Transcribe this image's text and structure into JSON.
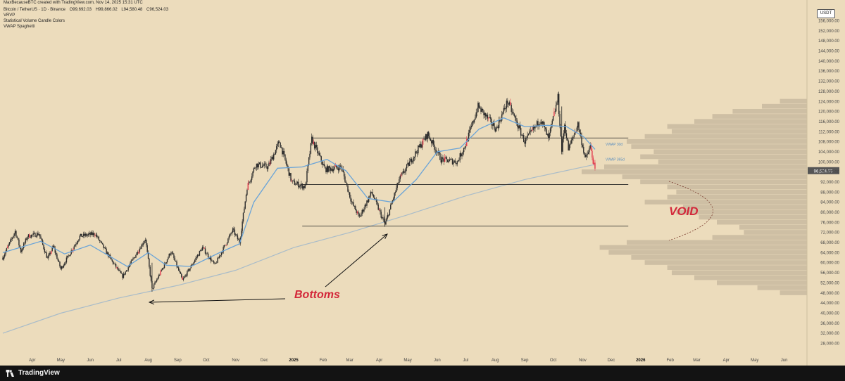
{
  "header": {
    "credit": "MaxBecauseBTC created with TradingView.com, Nov 14, 2025 15:31 UTC",
    "symbol": "Bitcoin / TetherUS · 1D · Binance",
    "ohlc": {
      "o": "O99,692.03",
      "h": "H99,866.02",
      "l": "L94,580.48",
      "c": "C96,524.03"
    },
    "indicators": [
      "VRVP",
      "Statistical Volume Candle Colors",
      "VWAP Spaghetti"
    ],
    "currency": "USDT"
  },
  "footer": {
    "brand": "TradingView"
  },
  "chart_data": {
    "type": "candlestick",
    "x_axis": {
      "start": "2024-03-01",
      "end": "2026-06-25",
      "ticks": [
        {
          "label": "Apr",
          "date": "2024-04-01"
        },
        {
          "label": "May",
          "date": "2024-05-01"
        },
        {
          "label": "Jun",
          "date": "2024-06-01"
        },
        {
          "label": "Jul",
          "date": "2024-07-01"
        },
        {
          "label": "Aug",
          "date": "2024-08-01"
        },
        {
          "label": "Sep",
          "date": "2024-09-01"
        },
        {
          "label": "Oct",
          "date": "2024-10-01"
        },
        {
          "label": "Nov",
          "date": "2024-11-01"
        },
        {
          "label": "Dec",
          "date": "2024-12-01"
        },
        {
          "label": "2025",
          "date": "2025-01-01",
          "bold": true
        },
        {
          "label": "Feb",
          "date": "2025-02-01"
        },
        {
          "label": "Mar",
          "date": "2025-03-01"
        },
        {
          "label": "Apr",
          "date": "2025-04-01"
        },
        {
          "label": "May",
          "date": "2025-05-01"
        },
        {
          "label": "Jun",
          "date": "2025-06-01"
        },
        {
          "label": "Jul",
          "date": "2025-07-01"
        },
        {
          "label": "Aug",
          "date": "2025-08-01"
        },
        {
          "label": "Sep",
          "date": "2025-09-01"
        },
        {
          "label": "Oct",
          "date": "2025-10-01"
        },
        {
          "label": "Nov",
          "date": "2025-11-01"
        },
        {
          "label": "Dec",
          "date": "2025-12-01"
        },
        {
          "label": "2026",
          "date": "2026-01-01",
          "bold": true
        },
        {
          "label": "Feb",
          "date": "2026-02-01"
        },
        {
          "label": "Mar",
          "date": "2026-03-01"
        },
        {
          "label": "Apr",
          "date": "2026-04-01"
        },
        {
          "label": "May",
          "date": "2026-05-01"
        },
        {
          "label": "Jun",
          "date": "2026-06-01"
        }
      ]
    },
    "y_axis": {
      "ylim": [
        22000,
        162000
      ],
      "ticks": [
        "156,000.00",
        "152,000.00",
        "148,000.00",
        "144,000.00",
        "140,000.00",
        "136,000.00",
        "132,000.00",
        "128,000.00",
        "124,000.00",
        "120,000.00",
        "116,000.00",
        "112,000.00",
        "108,000.00",
        "104,000.00",
        "100,000.00",
        "96,000.00",
        "92,000.00",
        "88,000.00",
        "84,000.00",
        "80,000.00",
        "76,000.00",
        "72,000.00",
        "68,000.00",
        "64,000.00",
        "60,000.00",
        "56,000.00",
        "52,000.00",
        "48,000.00",
        "44,000.00",
        "40,000.00",
        "36,000.00",
        "32,000.00",
        "28,000.00"
      ],
      "last_price": "96,524.03"
    },
    "price_path": [
      [
        "2024-03-01",
        62000
      ],
      [
        "2024-03-14",
        72500
      ],
      [
        "2024-03-20",
        64500
      ],
      [
        "2024-03-27",
        70500
      ],
      [
        "2024-04-08",
        71500
      ],
      [
        "2024-04-17",
        61500
      ],
      [
        "2024-04-23",
        66500
      ],
      [
        "2024-05-01",
        57500
      ],
      [
        "2024-05-21",
        70500
      ],
      [
        "2024-06-06",
        71500
      ],
      [
        "2024-06-24",
        60500
      ],
      [
        "2024-07-05",
        54500
      ],
      [
        "2024-07-29",
        69500
      ],
      [
        "2024-08-05",
        49500
      ],
      [
        "2024-08-25",
        64500
      ],
      [
        "2024-09-06",
        53000
      ],
      [
        "2024-09-27",
        66000
      ],
      [
        "2024-10-10",
        59000
      ],
      [
        "2024-10-29",
        73000
      ],
      [
        "2024-11-05",
        68000
      ],
      [
        "2024-11-13",
        90000
      ],
      [
        "2024-11-22",
        99000
      ],
      [
        "2024-12-05",
        98000
      ],
      [
        "2024-12-17",
        108000
      ],
      [
        "2024-12-30",
        92000
      ],
      [
        "2025-01-13",
        90000
      ],
      [
        "2025-01-20",
        109000
      ],
      [
        "2025-02-03",
        97000
      ],
      [
        "2025-02-20",
        98000
      ],
      [
        "2025-03-03",
        84000
      ],
      [
        "2025-03-11",
        78000
      ],
      [
        "2025-03-24",
        88000
      ],
      [
        "2025-04-07",
        75000
      ],
      [
        "2025-04-22",
        93000
      ],
      [
        "2025-05-10",
        104000
      ],
      [
        "2025-05-22",
        111000
      ],
      [
        "2025-06-05",
        101000
      ],
      [
        "2025-06-22",
        100000
      ],
      [
        "2025-07-01",
        107000
      ],
      [
        "2025-07-14",
        122000
      ],
      [
        "2025-08-02",
        113000
      ],
      [
        "2025-08-14",
        124000
      ],
      [
        "2025-09-01",
        108000
      ],
      [
        "2025-09-18",
        117000
      ],
      [
        "2025-09-26",
        109000
      ],
      [
        "2025-10-06",
        125500
      ],
      [
        "2025-10-10",
        104500
      ],
      [
        "2025-10-13",
        115000
      ],
      [
        "2025-10-17",
        105000
      ],
      [
        "2025-10-27",
        115000
      ],
      [
        "2025-11-04",
        101000
      ],
      [
        "2025-11-09",
        106000
      ],
      [
        "2025-11-14",
        96524
      ]
    ],
    "vwap_30d": [
      [
        "2024-03-01",
        64000
      ],
      [
        "2024-04-10",
        68500
      ],
      [
        "2024-05-05",
        63500
      ],
      [
        "2024-06-01",
        67000
      ],
      [
        "2024-07-10",
        58500
      ],
      [
        "2024-08-01",
        64000
      ],
      [
        "2024-08-20",
        59000
      ],
      [
        "2024-09-15",
        58500
      ],
      [
        "2024-10-15",
        64000
      ],
      [
        "2024-11-05",
        67500
      ],
      [
        "2024-11-20",
        84000
      ],
      [
        "2024-12-15",
        97500
      ],
      [
        "2025-01-10",
        98000
      ],
      [
        "2025-02-05",
        101000
      ],
      [
        "2025-02-25",
        96500
      ],
      [
        "2025-03-20",
        85500
      ],
      [
        "2025-04-15",
        84000
      ],
      [
        "2025-05-10",
        93000
      ],
      [
        "2025-06-01",
        104000
      ],
      [
        "2025-06-25",
        105500
      ],
      [
        "2025-07-15",
        113000
      ],
      [
        "2025-08-10",
        117500
      ],
      [
        "2025-09-01",
        114000
      ],
      [
        "2025-09-25",
        114500
      ],
      [
        "2025-10-15",
        114000
      ],
      [
        "2025-11-02",
        110000
      ],
      [
        "2025-11-14",
        105000
      ]
    ],
    "vwap_365d": [
      [
        "2024-03-01",
        32000
      ],
      [
        "2024-05-01",
        40000
      ],
      [
        "2024-07-01",
        46000
      ],
      [
        "2024-09-01",
        51000
      ],
      [
        "2024-11-01",
        57000
      ],
      [
        "2025-01-01",
        66000
      ],
      [
        "2025-03-01",
        72000
      ],
      [
        "2025-05-01",
        79000
      ],
      [
        "2025-07-01",
        86500
      ],
      [
        "2025-09-01",
        93000
      ],
      [
        "2025-11-14",
        99000
      ]
    ],
    "series_labels": {
      "vwap_30d": "VWAP 30d",
      "vwap_365d": "VWAP 365d"
    },
    "levels": [
      {
        "price": 109500,
        "from": "2025-01-20",
        "to": "2025-12-19"
      },
      {
        "price": 91000,
        "from": "2025-01-10",
        "to": "2025-12-19"
      },
      {
        "price": 74500,
        "from": "2025-01-10",
        "to": "2025-12-19"
      }
    ],
    "volume_profile": [
      [
        124000,
        0.12
      ],
      [
        122000,
        0.2
      ],
      [
        120000,
        0.33
      ],
      [
        118000,
        0.42
      ],
      [
        116000,
        0.5
      ],
      [
        114000,
        0.62
      ],
      [
        112000,
        0.6
      ],
      [
        110000,
        0.72
      ],
      [
        108000,
        0.8
      ],
      [
        106000,
        0.78
      ],
      [
        104000,
        0.68
      ],
      [
        102000,
        0.74
      ],
      [
        100000,
        0.66
      ],
      [
        98000,
        0.9
      ],
      [
        96000,
        1.0
      ],
      [
        94000,
        0.82
      ],
      [
        92000,
        0.74
      ],
      [
        90000,
        0.62
      ],
      [
        88000,
        0.58
      ],
      [
        86000,
        0.62
      ],
      [
        84000,
        0.72
      ],
      [
        82000,
        0.55
      ],
      [
        80000,
        0.58
      ],
      [
        78000,
        0.48
      ],
      [
        76000,
        0.4
      ],
      [
        74000,
        0.3
      ],
      [
        72000,
        0.28
      ],
      [
        70000,
        0.42
      ],
      [
        68000,
        0.8
      ],
      [
        66000,
        0.92
      ],
      [
        64000,
        0.88
      ],
      [
        62000,
        0.78
      ],
      [
        60000,
        0.72
      ],
      [
        58000,
        0.62
      ],
      [
        56000,
        0.6
      ],
      [
        54000,
        0.5
      ],
      [
        52000,
        0.4
      ],
      [
        50000,
        0.22
      ],
      [
        48000,
        0.12
      ]
    ],
    "annotations": {
      "bottoms": {
        "text": "Bottoms"
      },
      "void": {
        "text": "VOID"
      }
    },
    "colors": {
      "background": "#ecdcbc",
      "candle": "#2b2b2b",
      "candle_highlight": "#e23b4e",
      "vwap_30d": "#6aa4d8",
      "vwap_365d": "#a9bcc9",
      "profile": "#c9baa0",
      "annotation": "#d3283a"
    }
  }
}
